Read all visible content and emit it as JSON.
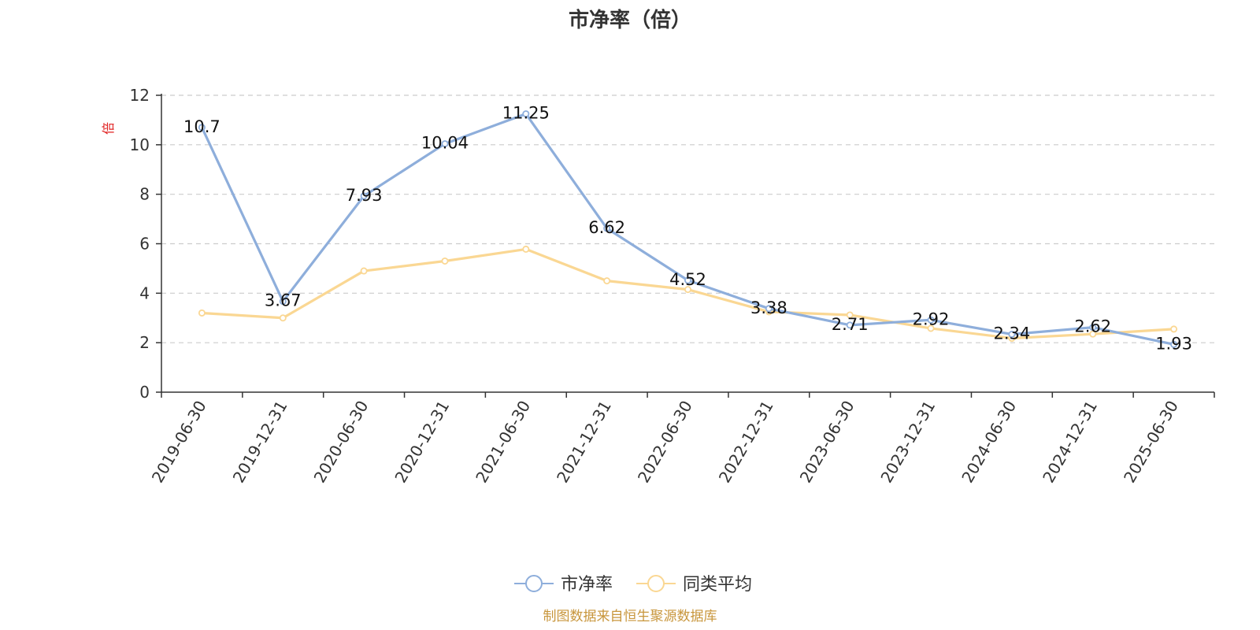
{
  "chart_data": {
    "type": "line",
    "title": "市净率（倍）",
    "unit_label": "倍",
    "source": "制图数据来自恒生聚源数据库",
    "categories": [
      "2019-06-30",
      "2019-12-31",
      "2020-06-30",
      "2020-12-31",
      "2021-06-30",
      "2021-12-31",
      "2022-06-30",
      "2022-12-31",
      "2023-06-30",
      "2023-12-31",
      "2024-06-30",
      "2024-12-31",
      "2025-06-30"
    ],
    "ylim": [
      0,
      12
    ],
    "yticks": [
      "0",
      "2",
      "4",
      "6",
      "8",
      "10",
      "12"
    ],
    "grid": true,
    "legend_position": "bottom-center",
    "series": [
      {
        "name": "市净率",
        "color": "#8eaedb",
        "values": [
          10.7,
          3.67,
          7.93,
          10.04,
          11.25,
          6.62,
          4.52,
          3.38,
          2.71,
          2.92,
          2.34,
          2.62,
          1.93
        ],
        "labels": [
          "10.7",
          "3.67",
          "7.93",
          "10.04",
          "11.25",
          "6.62",
          "4.52",
          "3.38",
          "2.71",
          "2.92",
          "2.34",
          "2.62",
          "1.93"
        ]
      },
      {
        "name": "同类平均",
        "color": "#fad793",
        "values": [
          3.2,
          3.0,
          4.9,
          5.3,
          5.78,
          4.5,
          4.15,
          3.25,
          3.12,
          2.58,
          2.18,
          2.35,
          2.55
        ]
      }
    ]
  }
}
